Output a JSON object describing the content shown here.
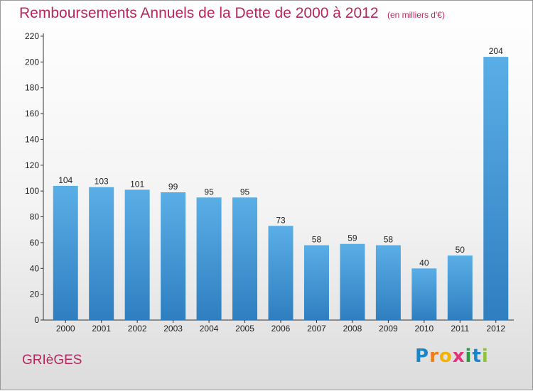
{
  "chart_data": {
    "type": "bar",
    "title": "Remboursements Annuels de la Dette de 2000 à 2012",
    "subtitle": "(en milliers d'€)",
    "categories": [
      "2000",
      "2001",
      "2002",
      "2003",
      "2004",
      "2005",
      "2006",
      "2007",
      "2008",
      "2009",
      "2010",
      "2011",
      "2012"
    ],
    "values": [
      104,
      103,
      101,
      99,
      95,
      95,
      73,
      58,
      59,
      58,
      40,
      50,
      204
    ],
    "ylim": [
      0,
      220
    ],
    "yticks": [
      0,
      20,
      40,
      60,
      80,
      100,
      120,
      140,
      160,
      180,
      200,
      220
    ],
    "grid": false,
    "bar_color_light": "#5aaee6",
    "bar_color_dark": "#2f7fc0"
  },
  "footer": {
    "commune": "GRIèGES",
    "logo_letters": [
      "P",
      "r",
      "o",
      "x",
      "i",
      "t",
      "i"
    ],
    "logo_colors": [
      "#1a86c9",
      "#ef7d1a",
      "#f2b400",
      "#e5337b",
      "#2e9a48",
      "#1a86c9",
      "#8fc23e"
    ]
  }
}
